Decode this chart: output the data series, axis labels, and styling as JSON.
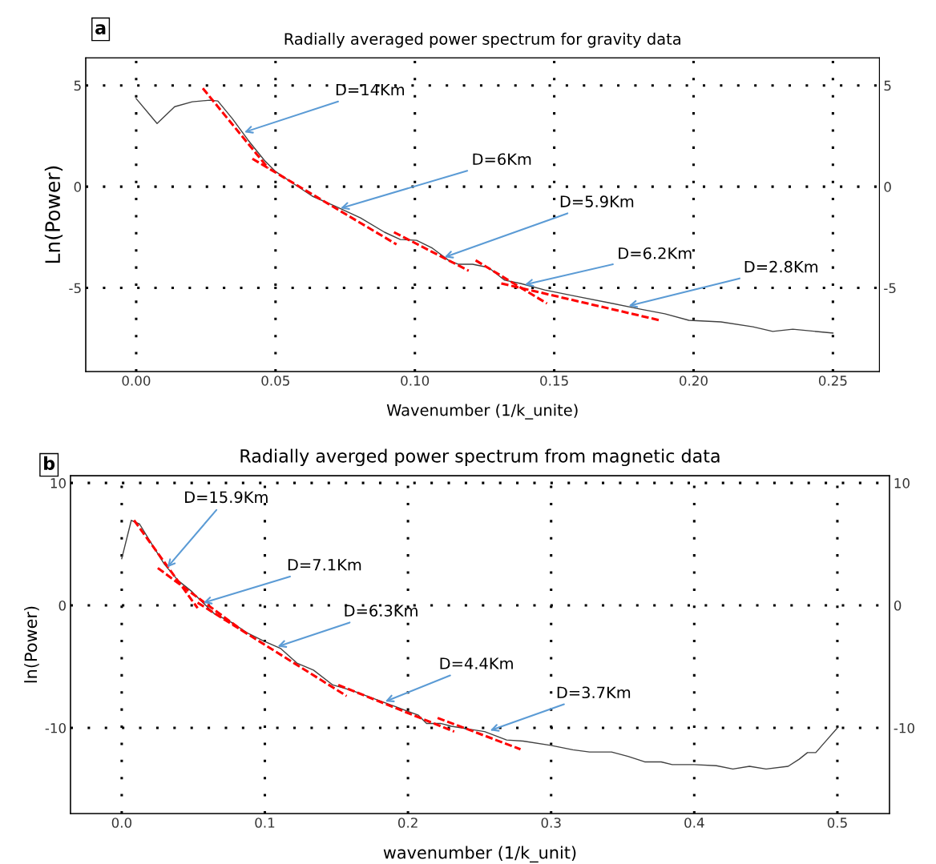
{
  "chart_data": [
    {
      "type": "line",
      "title": "Radially averaged power spectrum for gravity data",
      "xlabel": "Wavenumber (1/k_unite)",
      "ylabel": "Ln(Power)",
      "xlim": [
        -0.0181,
        0.2667
      ],
      "ylim": [
        -9.13,
        6.36
      ],
      "xticks": [
        {
          "value": 0,
          "label": "0.00"
        },
        {
          "value": 0.05,
          "label": "0.05"
        },
        {
          "value": 0.1,
          "label": "0.10"
        },
        {
          "value": 0.15,
          "label": "0.15"
        },
        {
          "value": 0.2,
          "label": "0.20"
        },
        {
          "value": 0.25,
          "label": "0.25"
        }
      ],
      "yticks": [
        -5,
        0,
        5
      ],
      "y2lim": [
        -9.13,
        6.36
      ],
      "y2ticks": [
        -5,
        0,
        5
      ],
      "grid": true,
      "legend": false,
      "series": [
        {
          "color": "#404040",
          "line_style": "solid",
          "x": [
            0.0,
            0.0075,
            0.0138,
            0.0201,
            0.0264,
            0.0293,
            0.0345,
            0.0402,
            0.046,
            0.05,
            0.0546,
            0.0632,
            0.0718,
            0.0805,
            0.0891,
            0.0948,
            0.1006,
            0.1063,
            0.1121,
            0.1155,
            0.1207,
            0.1264,
            0.1322,
            0.1379,
            0.1466,
            0.158,
            0.1695,
            0.181,
            0.1897,
            0.1983,
            0.2098,
            0.2213,
            0.2284,
            0.2356,
            0.25
          ],
          "values": [
            4.35,
            3.12,
            3.95,
            4.19,
            4.27,
            4.23,
            3.36,
            2.29,
            1.3,
            0.75,
            0.32,
            -0.47,
            -0.99,
            -1.54,
            -2.25,
            -2.61,
            -2.65,
            -3.04,
            -3.64,
            -3.83,
            -3.83,
            -3.99,
            -4.62,
            -4.78,
            -5.1,
            -5.42,
            -5.73,
            -6.05,
            -6.28,
            -6.6,
            -6.68,
            -6.92,
            -7.15,
            -7.04,
            -7.23
          ]
        },
        {
          "color": "#ff0000",
          "line_style": "dashed",
          "x": [
            0.0239,
            0.0474
          ],
          "values": [
            4.86,
            0.91
          ]
        },
        {
          "color": "#ff0000",
          "line_style": "dashed",
          "x": [
            0.0417,
            0.0934
          ],
          "values": [
            1.38,
            -2.85
          ]
        },
        {
          "color": "#ff0000",
          "line_style": "dashed",
          "x": [
            0.0925,
            0.1193
          ],
          "values": [
            -2.25,
            -4.15
          ]
        },
        {
          "color": "#ff0000",
          "line_style": "dashed",
          "x": [
            0.1218,
            0.1474
          ],
          "values": [
            -3.64,
            -5.77
          ]
        },
        {
          "color": "#ff0000",
          "line_style": "dashed",
          "x": [
            0.131,
            0.1879
          ],
          "values": [
            -4.78,
            -6.6
          ]
        }
      ],
      "annotations": [
        "a",
        {
          "text": "D=14Km",
          "x": 0.0388,
          "y": 2.69
        },
        {
          "text": "D=6Km",
          "x": 0.0733,
          "y": -1.07
        },
        {
          "text": "D=5.9Km",
          "x": 0.1106,
          "y": -3.49
        },
        {
          "text": "D=6.2Km",
          "x": 0.1394,
          "y": -4.84
        },
        {
          "text": "D=2.8Km",
          "x": 0.1767,
          "y": -5.89
        }
      ]
    },
    {
      "type": "line",
      "title": "Radially averged power spectrum from magnetic data",
      "xlabel": "wavenumber (1/k_unit)",
      "ylabel": "ln(Power)",
      "xlim": [
        -0.0358,
        0.5364
      ],
      "ylim": [
        -17.0,
        10.59
      ],
      "xticks": [
        {
          "value": 0,
          "label": "0.0"
        },
        {
          "value": 0.1,
          "label": "0.1"
        },
        {
          "value": 0.2,
          "label": "0.2"
        },
        {
          "value": 0.3,
          "label": "0.3"
        },
        {
          "value": 0.4,
          "label": "0.4"
        },
        {
          "value": 0.5,
          "label": "0.5"
        }
      ],
      "yticks": [
        -10,
        0,
        10
      ],
      "y2lim": [
        -17.0,
        10.59
      ],
      "y2ticks": [
        -10,
        0,
        10
      ],
      "grid": true,
      "legend": false,
      "series": [
        {
          "color": "#404040",
          "line_style": "solid",
          "x": [
            0.0,
            0.0067,
            0.0125,
            0.0202,
            0.0298,
            0.0395,
            0.0491,
            0.0568,
            0.0646,
            0.0761,
            0.0877,
            0.0993,
            0.1108,
            0.1224,
            0.134,
            0.1475,
            0.161,
            0.1764,
            0.1919,
            0.2073,
            0.213,
            0.2227,
            0.2304,
            0.2419,
            0.2535,
            0.2689,
            0.2805,
            0.2998,
            0.3152,
            0.3268,
            0.3422,
            0.3538,
            0.3654,
            0.3769,
            0.3846,
            0.4,
            0.4155,
            0.427,
            0.4386,
            0.4502,
            0.4656,
            0.4733,
            0.4791,
            0.4849,
            0.4926,
            0.5
          ],
          "values": [
            3.81,
            6.95,
            6.64,
            5.16,
            3.36,
            2.02,
            1.12,
            0.22,
            -0.67,
            -1.35,
            -2.24,
            -2.91,
            -3.5,
            -4.71,
            -5.29,
            -6.5,
            -6.95,
            -7.62,
            -8.3,
            -8.97,
            -9.64,
            -9.64,
            -9.87,
            -10.09,
            -10.31,
            -10.99,
            -11.08,
            -11.43,
            -11.79,
            -11.97,
            -11.97,
            -12.33,
            -12.78,
            -12.78,
            -13.0,
            -13.0,
            -13.09,
            -13.36,
            -13.14,
            -13.36,
            -13.14,
            -12.56,
            -12.02,
            -12.02,
            -10.99,
            -10.0
          ]
        },
        {
          "color": "#ff0000",
          "line_style": "dashed",
          "x": [
            0.0086,
            0.053
          ],
          "values": [
            6.95,
            -0.22
          ]
        },
        {
          "color": "#ff0000",
          "line_style": "dashed",
          "x": [
            0.0252,
            0.0839
          ],
          "values": [
            3.05,
            -2.02
          ]
        },
        {
          "color": "#ff0000",
          "line_style": "dashed",
          "x": [
            0.053,
            0.1571
          ],
          "values": [
            0.22,
            -7.4
          ]
        },
        {
          "color": "#ff0000",
          "line_style": "dashed",
          "x": [
            0.1513,
            0.2323
          ],
          "values": [
            -6.5,
            -10.31
          ]
        },
        {
          "color": "#ff0000",
          "line_style": "dashed",
          "x": [
            0.2207,
            0.2786
          ],
          "values": [
            -9.19,
            -11.75
          ]
        }
      ],
      "annotations": [
        "b",
        {
          "text": "D=15.9Km",
          "x": 0.0318,
          "y": 3.1
        },
        {
          "text": "D=7.1Km",
          "x": 0.0569,
          "y": 0.21
        },
        {
          "text": "D=6.3Km",
          "x": 0.1089,
          "y": -3.36
        },
        {
          "text": "D=4.4Km",
          "x": 0.1841,
          "y": -7.85
        },
        {
          "text": "D=3.7Km",
          "x": 0.2574,
          "y": -10.22
        }
      ]
    }
  ]
}
